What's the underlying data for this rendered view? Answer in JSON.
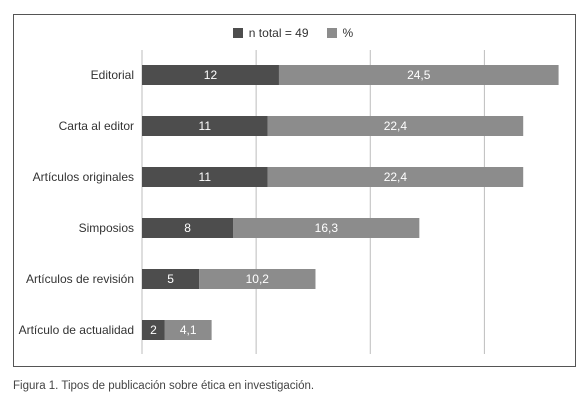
{
  "caption": "Figura 1. Tipos de publicación sobre ética en investigación.",
  "colors": {
    "n_total": "#4d4d4d",
    "percent": "#8c8c8c",
    "grid": "#bdbdbd",
    "frame": "#555555"
  },
  "chart_data": {
    "type": "bar",
    "orientation": "horizontal",
    "stacked": true,
    "categories": [
      "Editorial",
      "Carta al editor",
      "Artículos originales",
      "Simposios",
      "Artículos de revisión",
      "Artículo de actualidad"
    ],
    "series": [
      {
        "name": "n total = 49",
        "values": [
          12,
          11,
          11,
          8,
          5,
          2
        ],
        "labels": [
          "12",
          "11",
          "11",
          "8",
          "5",
          "2"
        ]
      },
      {
        "name": "%",
        "values": [
          24.5,
          22.4,
          22.4,
          16.3,
          10.2,
          4.1
        ],
        "labels": [
          "24,5",
          "22,4",
          "22,4",
          "16,3",
          "10,2",
          "4,1"
        ]
      }
    ],
    "xlim": [
      0,
      37.5
    ],
    "grid": true,
    "legend_position": "top-center"
  }
}
